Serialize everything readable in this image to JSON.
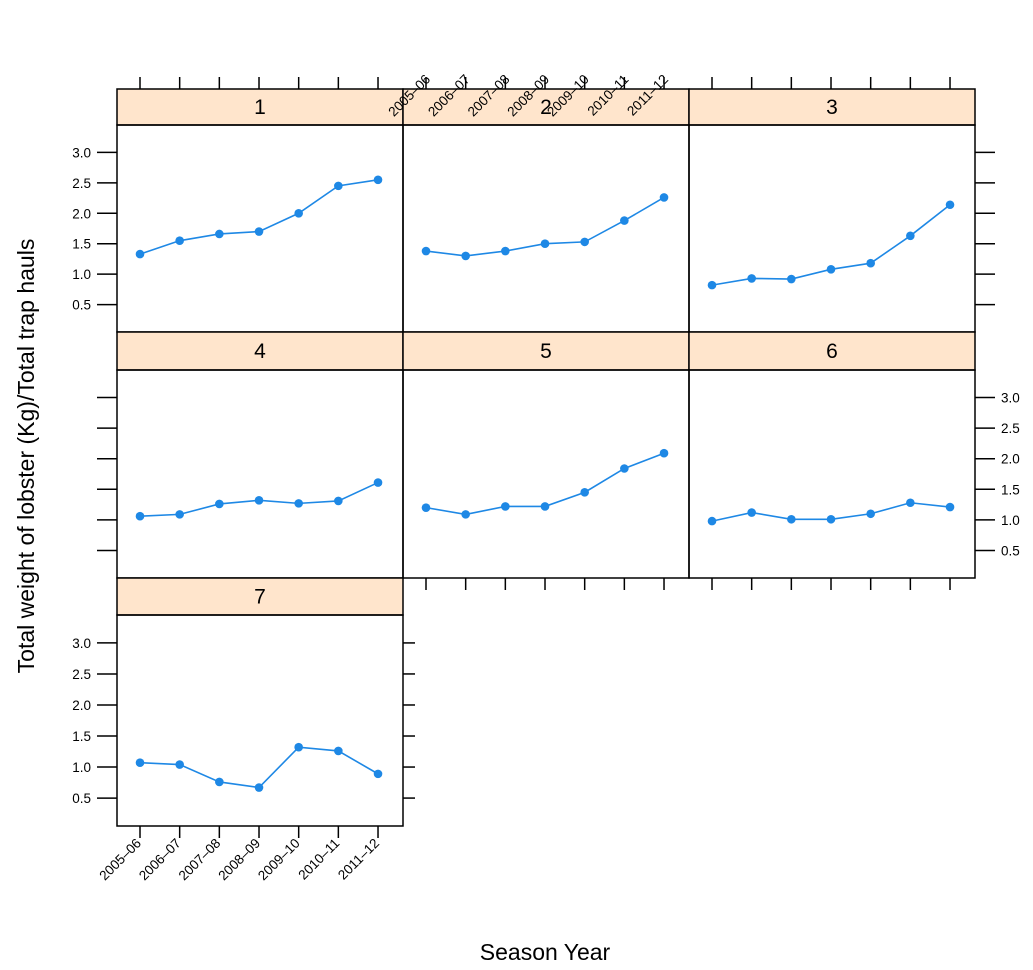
{
  "chart_data": {
    "type": "line",
    "layout": "lattice panels (3 columns)",
    "xlabel": "Season Year",
    "ylabel": "Total weight of lobster (Kg)/Total trap hauls",
    "categories": [
      "2005–06",
      "2006–07",
      "2007–08",
      "2008–09",
      "2009–10",
      "2010–11",
      "2011–12"
    ],
    "ylim": [
      0.05,
      3.45
    ],
    "yticks": [
      "0.5",
      "1.0",
      "1.5",
      "2.0",
      "2.5",
      "3.0"
    ],
    "ytick_values": [
      0.5,
      1.0,
      1.5,
      2.0,
      2.5,
      3.0
    ],
    "grid": false,
    "colors": {
      "series": "#1e88e5",
      "strip": "#ffe5cc",
      "frame": "#000000"
    },
    "panels": [
      {
        "label": "1",
        "values": [
          1.33,
          1.55,
          1.66,
          1.7,
          2.0,
          2.45,
          2.55
        ]
      },
      {
        "label": "2",
        "values": [
          1.38,
          1.3,
          1.38,
          1.5,
          1.53,
          1.88,
          2.26
        ]
      },
      {
        "label": "3",
        "values": [
          0.82,
          0.93,
          0.92,
          1.08,
          1.18,
          1.63,
          2.14
        ]
      },
      {
        "label": "4",
        "values": [
          1.06,
          1.09,
          1.26,
          1.32,
          1.27,
          1.31,
          1.61
        ]
      },
      {
        "label": "5",
        "values": [
          1.2,
          1.09,
          1.22,
          1.22,
          1.45,
          1.84,
          2.09
        ]
      },
      {
        "label": "6",
        "values": [
          0.98,
          1.12,
          1.01,
          1.01,
          1.1,
          1.28,
          1.21
        ]
      },
      {
        "label": "7",
        "values": [
          1.07,
          1.04,
          0.76,
          0.67,
          1.32,
          1.26,
          0.89
        ]
      }
    ]
  }
}
